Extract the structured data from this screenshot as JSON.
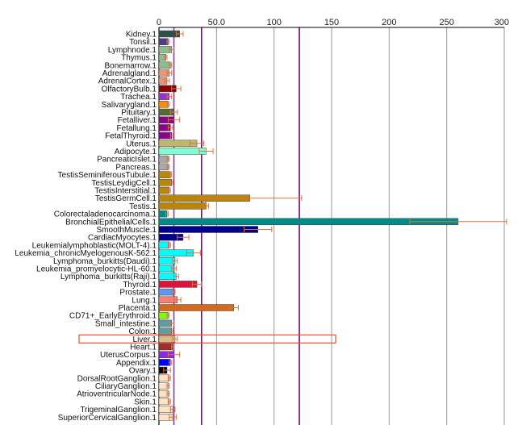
{
  "chart_data": {
    "type": "bar",
    "orientation": "horizontal",
    "title": "",
    "xlabel": "",
    "ylabel": "",
    "xlim": [
      0,
      300
    ],
    "x_ticks": [
      "0",
      "50.0",
      "100",
      "150",
      "200",
      "250",
      "300"
    ],
    "grid": "vertical",
    "reference_lines": [
      {
        "value": 13,
        "color": "#9933aa"
      },
      {
        "value": 37,
        "color": "#800080"
      },
      {
        "value": 122,
        "color": "#800080"
      }
    ],
    "highlighted_category": "Liver.1",
    "highlight_color": "#e8503a",
    "bars": [
      {
        "label": "Kidney.1",
        "value": 18,
        "err": 3,
        "color": "#2f4f4f"
      },
      {
        "label": "Tonsil.1",
        "value": 8,
        "err": 1,
        "color": "#483d8b"
      },
      {
        "label": "Lymphnode.1",
        "value": 11,
        "err": 2,
        "color": "#8fbc8f"
      },
      {
        "label": "Thymus.1",
        "value": 6,
        "err": 1,
        "color": "#8fbc8f"
      },
      {
        "label": "Bonemarrow.1",
        "value": 10,
        "err": 1,
        "color": "#8fbc8f"
      },
      {
        "label": "Adrenalgland.1",
        "value": 9,
        "err": 2,
        "color": "#e9967a"
      },
      {
        "label": "AdrenalCortex.1",
        "value": 7,
        "err": 2,
        "color": "#e9967a"
      },
      {
        "label": "OlfactoryBulb.1",
        "value": 15,
        "err": 4,
        "color": "#8b0000"
      },
      {
        "label": "Trachea.1",
        "value": 9,
        "err": 2,
        "color": "#9932cc"
      },
      {
        "label": "Salivarygland.1",
        "value": 8,
        "err": 1,
        "color": "#ff8c00"
      },
      {
        "label": "Pituitary.1",
        "value": 13,
        "err": 3,
        "color": "#556b2f"
      },
      {
        "label": "Fetalliver.1",
        "value": 13,
        "err": 5,
        "color": "#8b008b"
      },
      {
        "label": "Fetallung.1",
        "value": 10,
        "err": 2,
        "color": "#8b008b"
      },
      {
        "label": "FetalThyroid.1",
        "value": 11,
        "err": 1,
        "color": "#8b008b"
      },
      {
        "label": "Uterus.1",
        "value": 33,
        "err": 6,
        "color": "#bdb76b"
      },
      {
        "label": "Adipocyte.1",
        "value": 41,
        "err": 6,
        "color": "#7fffd4"
      },
      {
        "label": "PancreaticIslet.1",
        "value": 8,
        "err": 1,
        "color": "#a9a9a9"
      },
      {
        "label": "Pancreas.1",
        "value": 8,
        "err": 1,
        "color": "#a9a9a9"
      },
      {
        "label": "TestisSeminiferousTubule.1",
        "value": 10,
        "err": 1,
        "color": "#b8860b"
      },
      {
        "label": "TestisLeydigCell.1",
        "value": 11,
        "err": 1,
        "color": "#b8860b"
      },
      {
        "label": "TestisInterstitial.1",
        "value": 9,
        "err": 1,
        "color": "#b8860b"
      },
      {
        "label": "TestisGermCell.1",
        "value": 79,
        "err": 45,
        "color": "#b8860b"
      },
      {
        "label": "Testis.1",
        "value": 41,
        "err": 2,
        "color": "#b8860b"
      },
      {
        "label": "Colorectaladenocarcinoma.1",
        "value": 7,
        "err": 1,
        "color": "#008b8b"
      },
      {
        "label": "BronchialEpithelialCells.1",
        "value": 260,
        "err": 42,
        "color": "#008b8b"
      },
      {
        "label": "SmoothMuscle.1",
        "value": 86,
        "err": 12,
        "color": "#00008b"
      },
      {
        "label": "CardiacMyocytes.1",
        "value": 21,
        "err": 5,
        "color": "#00008b"
      },
      {
        "label": "Leukemialymphoblastic(MOLT-4).1",
        "value": 9,
        "err": 1,
        "color": "#00ffff"
      },
      {
        "label": "Leukemia_chronicMyelogenousK-562.1",
        "value": 30,
        "err": 6,
        "color": "#00ffff"
      },
      {
        "label": "Lymphoma_burkitts(Daudi).1",
        "value": 14,
        "err": 2,
        "color": "#00ffff"
      },
      {
        "label": "Leukemia_promyelocytic-HL-60.1",
        "value": 13,
        "err": 2,
        "color": "#00ffff"
      },
      {
        "label": "Lymphoma_burkitts(Raji).1",
        "value": 15,
        "err": 2,
        "color": "#00ffff"
      },
      {
        "label": "Thyroid.1",
        "value": 33,
        "err": 4,
        "color": "#dc143c"
      },
      {
        "label": "Prostate.1",
        "value": 13,
        "err": 1,
        "color": "#6495ed"
      },
      {
        "label": "Lung.1",
        "value": 16,
        "err": 3,
        "color": "#fa8072"
      },
      {
        "label": "Placenta.1",
        "value": 65,
        "err": 4,
        "color": "#d2691e"
      },
      {
        "label": "CD71+_EarlyErythroid.1",
        "value": 8,
        "err": 1,
        "color": "#7fff00"
      },
      {
        "label": "Small_intestine.1",
        "value": 11,
        "err": 2,
        "color": "#5f9ea0"
      },
      {
        "label": "Colon.1",
        "value": 11,
        "err": 1,
        "color": "#5f9ea0"
      },
      {
        "label": "Liver.1",
        "value": 14,
        "err": 2,
        "color": "#deb887"
      },
      {
        "label": "Heart.1",
        "value": 12,
        "err": 1,
        "color": "#a52a2a"
      },
      {
        "label": "UterusCorpus.1",
        "value": 13,
        "err": 5,
        "color": "#8a2be2"
      },
      {
        "label": "Appendix.1",
        "value": 10,
        "err": 1,
        "color": "#0000ff"
      },
      {
        "label": "Ovary.1",
        "value": 7,
        "err": 3,
        "color": "#000000"
      },
      {
        "label": "DorsalRootGanglion.1",
        "value": 9,
        "err": 1,
        "color": "#ffe4c4"
      },
      {
        "label": "CiliaryGanglion.1",
        "value": 8,
        "err": 1,
        "color": "#ffe4c4"
      },
      {
        "label": "AtrioventricularNode.1",
        "value": 8,
        "err": 1,
        "color": "#ffe4c4"
      },
      {
        "label": "Skin.1",
        "value": 9,
        "err": 1,
        "color": "#ffe4c4"
      },
      {
        "label": "TrigeminalGanglion.1",
        "value": 12,
        "err": 2,
        "color": "#ffe4c4"
      },
      {
        "label": "SuperiorCervicalGanglion.1",
        "value": 12,
        "err": 3,
        "color": "#ffe4c4"
      }
    ]
  }
}
